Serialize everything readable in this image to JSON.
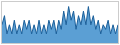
{
  "chart_data": {
    "type": "area",
    "series": [
      {
        "type": "area",
        "color": "#5b9fd4",
        "values": [
          4,
          6,
          2,
          4,
          2,
          5,
          2,
          4,
          2,
          5,
          3,
          5,
          2,
          4,
          2,
          5,
          2,
          4,
          2,
          5,
          3,
          5,
          2,
          5,
          3,
          7,
          4,
          8,
          5,
          7,
          3,
          6,
          4,
          7,
          4,
          8,
          4,
          6,
          3,
          5,
          2,
          4,
          3,
          5,
          2,
          4,
          2,
          4
        ]
      },
      {
        "type": "line",
        "color": "#1a5f9a",
        "values": [
          4,
          6,
          2,
          4,
          2,
          5,
          2,
          4,
          2,
          5,
          3,
          5,
          2,
          4,
          2,
          5,
          2,
          4,
          2,
          5,
          3,
          5,
          2,
          5,
          3,
          7,
          4,
          8,
          5,
          7,
          3,
          6,
          4,
          7,
          4,
          8,
          4,
          6,
          3,
          5,
          2,
          4,
          3,
          5,
          2,
          4,
          2,
          4
        ]
      }
    ],
    "xlim": [
      0,
      47
    ],
    "ylim": [
      0,
      9
    ],
    "grid": false,
    "tick_labels": false
  }
}
